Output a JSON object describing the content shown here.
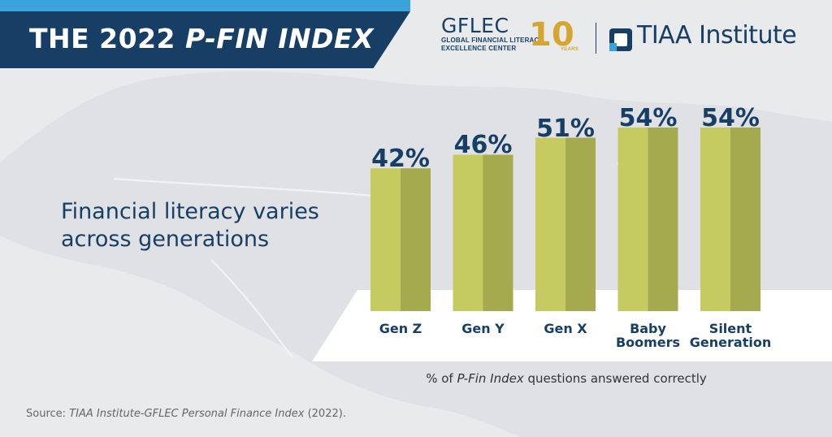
{
  "header": {
    "title_prefix": "THE 2022 ",
    "title_emphasis": "P-FIN INDEX"
  },
  "logos": {
    "gflec_name": "GFLEC",
    "gflec_line1": "GLOBAL FINANCIAL LITERACY",
    "gflec_line2": "EXCELLENCE CENTER",
    "anniversary_number": "10",
    "anniversary_word": "YEARS",
    "tiaa_name": "TIAA Institute"
  },
  "heading": "Financial literacy varies across generations",
  "caption": {
    "prefix": "% of ",
    "emphasis": "P-Fin Index",
    "suffix": " questions answered correctly"
  },
  "source": {
    "prefix": "Source: ",
    "emphasis": "TIAA Institute-GFLEC Personal Finance Index",
    "suffix": " (2022)."
  },
  "colors": {
    "navy": "#173f66",
    "sky_blue": "#3aa3dc",
    "bar_light": "#c5cb60",
    "bar_dark": "#a6aa4f",
    "gold": "#d6a52f"
  },
  "chart_data": {
    "type": "bar",
    "categories": [
      "Gen Z",
      "Gen Y",
      "Gen X",
      "Baby Boomers",
      "Silent Generation"
    ],
    "category_lines": [
      [
        "Gen Z"
      ],
      [
        "Gen Y"
      ],
      [
        "Gen X"
      ],
      [
        "Baby",
        "Boomers"
      ],
      [
        "Silent",
        "Generation"
      ]
    ],
    "values": [
      42,
      46,
      51,
      54,
      54
    ],
    "value_labels": [
      "42%",
      "46%",
      "51%",
      "54%",
      "54%"
    ],
    "ylim": [
      0,
      100
    ],
    "grid": false,
    "legend": "none"
  }
}
